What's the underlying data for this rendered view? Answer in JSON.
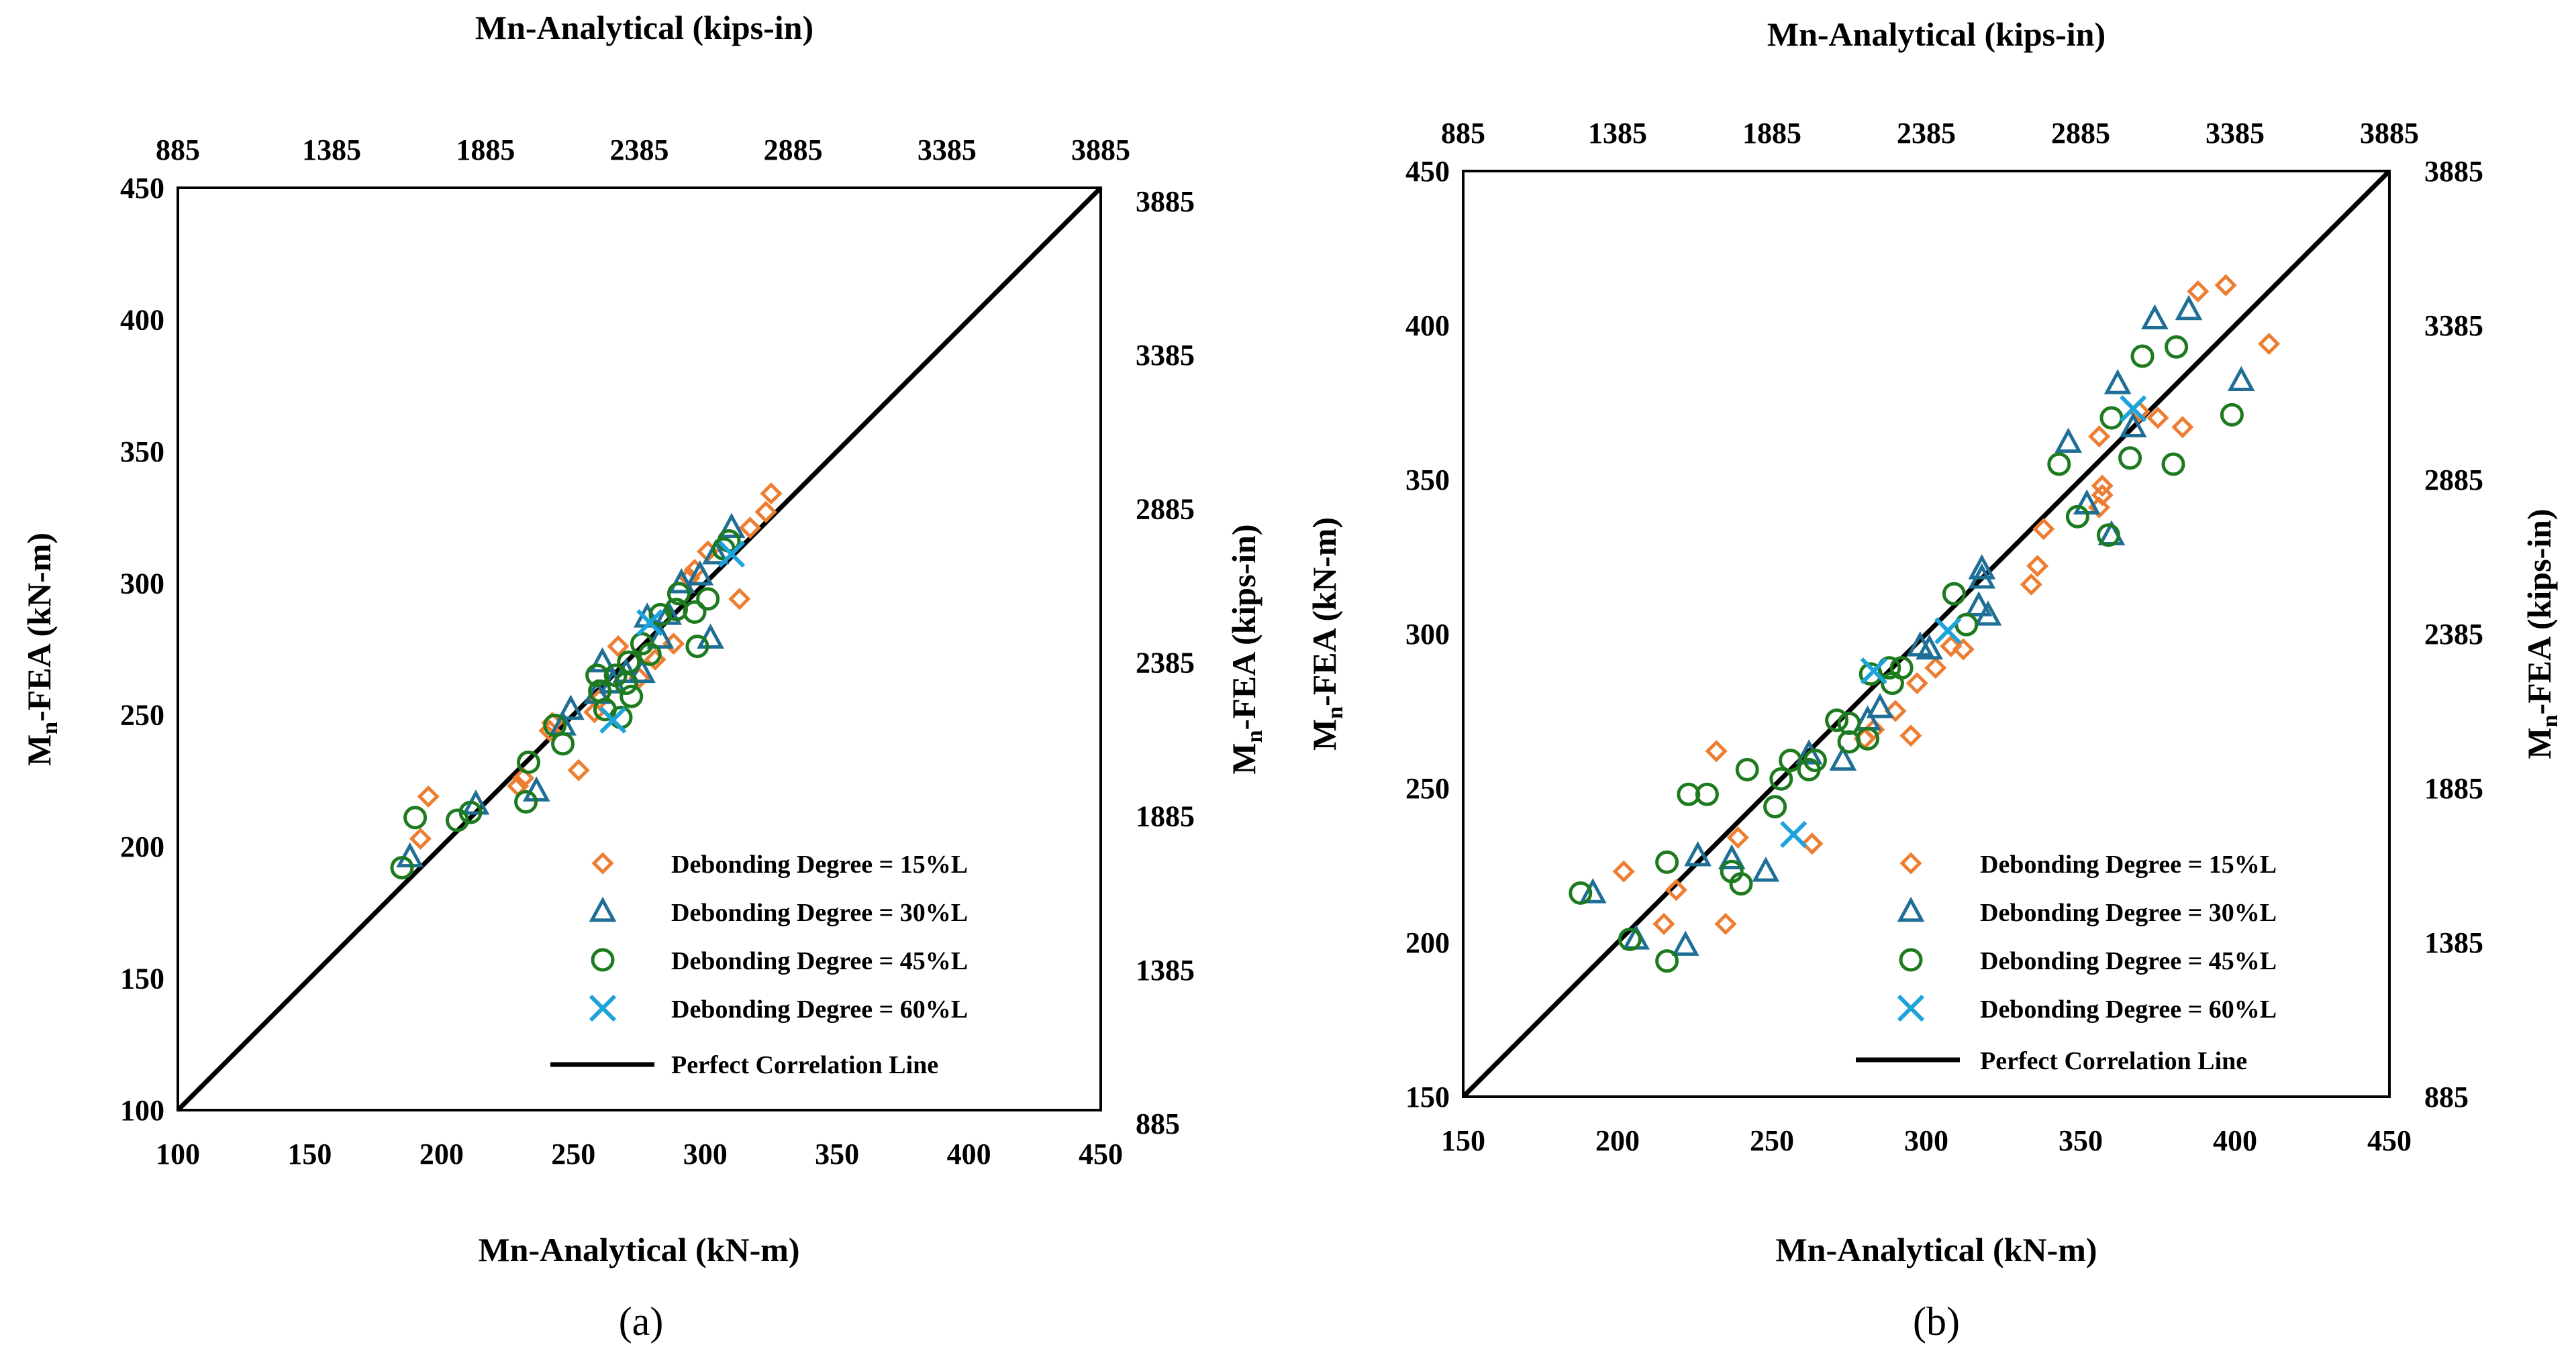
{
  "colors": {
    "series_15": "#ED7D31",
    "series_30": "#1F6E96",
    "series_45": "#1E7A1E",
    "series_60": "#1CA3DC",
    "line": "#000000"
  },
  "chart_data": [
    {
      "type": "scatter",
      "panel_label": "(a)",
      "title": "",
      "xlabel": "Mn-Analytical (kN-m)",
      "ylabel": "Mn-FEA (kN-m)",
      "ylabel_main": "M",
      "ylabel_sub": "n",
      "ylabel_rest": "-FEA (kN-m)",
      "x2label": "Mn-Analytical (kips-in)",
      "y2label_main": "M",
      "y2label_sub": "n",
      "y2label_rest": "-FEA (kips-in)",
      "xlim": [
        100,
        450
      ],
      "ylim": [
        100,
        450
      ],
      "x_ticks": [
        "100",
        "150",
        "200",
        "250",
        "300",
        "350",
        "400",
        "450"
      ],
      "y_ticks": [
        "100",
        "150",
        "200",
        "250",
        "300",
        "350",
        "400",
        "450"
      ],
      "x2_ticks": [
        "885",
        "1385",
        "1885",
        "2385",
        "2885",
        "3385",
        "3885"
      ],
      "y2_ticks": [
        "885",
        "1385",
        "1885",
        "2385",
        "2885",
        "3385",
        "3885"
      ],
      "legend": [
        "Debonding Degree = 15%L",
        "Debonding Degree = 30%L",
        "Debonding Degree = 45%L",
        "Debonding Degree = 60%L",
        "Perfect Correlation Line"
      ],
      "legend_position": "bottom-right",
      "series": [
        {
          "name": "Debonding Degree = 15%L",
          "marker": "diamond",
          "points": [
            [
              192,
              203
            ],
            [
              195,
              219
            ],
            [
              229,
              223
            ],
            [
              231,
              226
            ],
            [
              241,
              244
            ],
            [
              242,
              247
            ],
            [
              252,
              229
            ],
            [
              258,
              251
            ],
            [
              260,
              256
            ],
            [
              267,
              276
            ],
            [
              275,
              264
            ],
            [
              281,
              271
            ],
            [
              288,
              277
            ],
            [
              294,
              302
            ],
            [
              296,
              305
            ],
            [
              301,
              312
            ],
            [
              313,
              294
            ],
            [
              317,
              321
            ],
            [
              323,
              327
            ],
            [
              325,
              334
            ]
          ]
        },
        {
          "name": "Debonding Degree = 30%L",
          "marker": "triangle",
          "points": [
            [
              188,
              196
            ],
            [
              213,
              216
            ],
            [
              236,
              221
            ],
            [
              246,
              246
            ],
            [
              249,
              252
            ],
            [
              259,
              258
            ],
            [
              261,
              270
            ],
            [
              265,
              262
            ],
            [
              270,
              266
            ],
            [
              276,
              266
            ],
            [
              278,
              287
            ],
            [
              283,
              279
            ],
            [
              286,
              288
            ],
            [
              291,
              300
            ],
            [
              298,
              303
            ],
            [
              302,
              279
            ],
            [
              304,
              311
            ],
            [
              310,
              321
            ]
          ]
        },
        {
          "name": "Debonding Degree = 45%L",
          "marker": "circle",
          "points": [
            [
              185,
              192
            ],
            [
              190,
              211
            ],
            [
              206,
              210
            ],
            [
              211,
              213
            ],
            [
              232,
              217
            ],
            [
              233,
              232
            ],
            [
              243,
              246
            ],
            [
              246,
              239
            ],
            [
              259,
              265
            ],
            [
              260,
              259
            ],
            [
              262,
              252
            ],
            [
              266,
              265
            ],
            [
              268,
              249
            ],
            [
              270,
              262
            ],
            [
              271,
              270
            ],
            [
              272,
              257
            ],
            [
              276,
              277
            ],
            [
              279,
              273
            ],
            [
              283,
              288
            ],
            [
              289,
              290
            ],
            [
              290,
              296
            ],
            [
              296,
              289
            ],
            [
              297,
              276
            ],
            [
              301,
              294
            ],
            [
              307,
              313
            ],
            [
              309,
              316
            ]
          ]
        },
        {
          "name": "Debonding Degree = 60%L",
          "marker": "x",
          "points": [
            [
              265,
              248
            ],
            [
              279,
              285
            ],
            [
              310,
              311
            ]
          ]
        }
      ]
    },
    {
      "type": "scatter",
      "panel_label": "(b)",
      "title": "",
      "xlabel": "Mn-Analytical (kN-m)",
      "ylabel": "Mn-FEA (kN-m)",
      "ylabel_main": "M",
      "ylabel_sub": "n",
      "ylabel_rest": "-FEA (kN-m)",
      "x2label": "Mn-Analytical (kips-in)",
      "y2label_main": "M",
      "y2label_sub": "n",
      "y2label_rest": "-FEA (kips-in)",
      "xlim": [
        150,
        450
      ],
      "ylim": [
        150,
        450
      ],
      "x_ticks": [
        "150",
        "200",
        "250",
        "300",
        "350",
        "400",
        "450"
      ],
      "y_ticks": [
        "150",
        "200",
        "250",
        "300",
        "350",
        "400",
        "450"
      ],
      "x2_ticks": [
        "885",
        "1385",
        "1885",
        "2385",
        "2885",
        "3385",
        "3885"
      ],
      "y2_ticks": [
        "885",
        "1385",
        "1885",
        "2385",
        "2885",
        "3385",
        "3885"
      ],
      "legend": [
        "Debonding Degree = 15%L",
        "Debonding Degree = 30%L",
        "Debonding Degree = 45%L",
        "Debonding Degree = 60%L",
        "Perfect Correlation Line"
      ],
      "legend_position": "bottom-right",
      "series": [
        {
          "name": "Debonding Degree = 15%L",
          "marker": "diamond",
          "points": [
            [
              202,
              223
            ],
            [
              215,
              206
            ],
            [
              219,
              217
            ],
            [
              232,
              262
            ],
            [
              235,
              206
            ],
            [
              239,
              234
            ],
            [
              263,
              232
            ],
            [
              280,
              266
            ],
            [
              283,
              269
            ],
            [
              290,
              275
            ],
            [
              295,
              267
            ],
            [
              297,
              284
            ],
            [
              303,
              289
            ],
            [
              308,
              296
            ],
            [
              312,
              295
            ],
            [
              334,
              316
            ],
            [
              336,
              322
            ],
            [
              338,
              334
            ],
            [
              356,
              341
            ],
            [
              357,
              345
            ],
            [
              357,
              348
            ],
            [
              356,
              364
            ],
            [
              369,
              372
            ],
            [
              375,
              370
            ],
            [
              383,
              367
            ],
            [
              388,
              411
            ],
            [
              397,
              413
            ],
            [
              411,
              394
            ]
          ]
        },
        {
          "name": "Debonding Degree = 30%L",
          "marker": "triangle",
          "points": [
            [
              192,
              216
            ],
            [
              206,
              201
            ],
            [
              222,
              199
            ],
            [
              226,
              228
            ],
            [
              237,
              227
            ],
            [
              248,
              223
            ],
            [
              262,
              261
            ],
            [
              273,
              259
            ],
            [
              281,
              272
            ],
            [
              285,
              276
            ],
            [
              298,
              296
            ],
            [
              301,
              295
            ],
            [
              317,
              309
            ],
            [
              318,
              318
            ],
            [
              318,
              321
            ],
            [
              320,
              306
            ],
            [
              346,
              362
            ],
            [
              352,
              342
            ],
            [
              360,
              332
            ],
            [
              362,
              381
            ],
            [
              367,
              367
            ],
            [
              374,
              402
            ],
            [
              385,
              405
            ],
            [
              402,
              382
            ]
          ]
        },
        {
          "name": "Debonding Degree = 45%L",
          "marker": "circle",
          "points": [
            [
              188,
              216
            ],
            [
              204,
              201
            ],
            [
              216,
              194
            ],
            [
              216,
              226
            ],
            [
              223,
              248
            ],
            [
              229,
              248
            ],
            [
              237,
              223
            ],
            [
              240,
              219
            ],
            [
              242,
              256
            ],
            [
              251,
              244
            ],
            [
              253,
              253
            ],
            [
              256,
              259
            ],
            [
              262,
              256
            ],
            [
              264,
              259
            ],
            [
              271,
              272
            ],
            [
              275,
              271
            ],
            [
              275,
              265
            ],
            [
              281,
              266
            ],
            [
              282,
              287
            ],
            [
              288,
              289
            ],
            [
              289,
              284
            ],
            [
              292,
              289
            ],
            [
              309,
              313
            ],
            [
              313,
              303
            ],
            [
              343,
              355
            ],
            [
              349,
              338
            ],
            [
              359,
              332
            ],
            [
              360,
              370
            ],
            [
              366,
              357
            ],
            [
              370,
              390
            ],
            [
              380,
              355
            ],
            [
              381,
              393
            ],
            [
              399,
              371
            ]
          ]
        },
        {
          "name": "Debonding Degree = 60%L",
          "marker": "x",
          "points": [
            [
              257,
              235
            ],
            [
              283,
              288
            ],
            [
              307,
              301
            ],
            [
              367,
              373
            ]
          ]
        }
      ]
    }
  ]
}
